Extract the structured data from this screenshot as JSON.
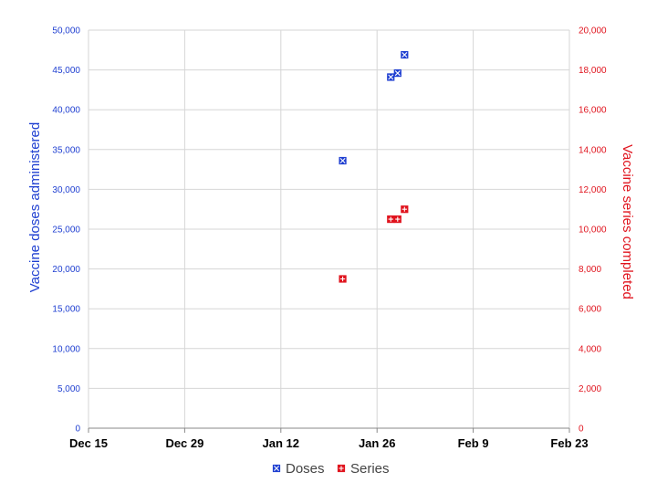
{
  "chart_data": {
    "type": "scatter",
    "x_tick_labels": [
      "Dec 15",
      "Dec 29",
      "Jan 12",
      "Jan 26",
      "Feb 9",
      "Feb 23"
    ],
    "ylabel_left": "Vaccine doses administered",
    "ylabel_right": "Vaccine series completed",
    "ylim_left": [
      0,
      50000
    ],
    "ylim_right": [
      0,
      20000
    ],
    "yticks_left": [
      "0",
      "5,000",
      "10,000",
      "15,000",
      "20,000",
      "25,000",
      "30,000",
      "35,000",
      "40,000",
      "45,000",
      "50,000"
    ],
    "yticks_right": [
      "0",
      "2,000",
      "4,000",
      "6,000",
      "8,000",
      "10,000",
      "12,000",
      "14,000",
      "16,000",
      "18,000",
      "20,000"
    ],
    "grid": true,
    "legend_position": "bottom",
    "series": [
      {
        "name": "Doses",
        "axis": "left",
        "color": "#1f3fd1",
        "marker": "x-square",
        "points": [
          {
            "x": "Jan 21",
            "y": 33600
          },
          {
            "x": "Jan 28",
            "y": 44100
          },
          {
            "x": "Jan 29",
            "y": 44600
          },
          {
            "x": "Jan 30",
            "y": 46900
          }
        ]
      },
      {
        "name": "Series",
        "axis": "right",
        "color": "#e0141e",
        "marker": "plus-square",
        "points": [
          {
            "x": "Jan 21",
            "y": 7500
          },
          {
            "x": "Jan 28",
            "y": 10500
          },
          {
            "x": "Jan 29",
            "y": 10500
          },
          {
            "x": "Jan 30",
            "y": 11000
          }
        ]
      }
    ]
  }
}
